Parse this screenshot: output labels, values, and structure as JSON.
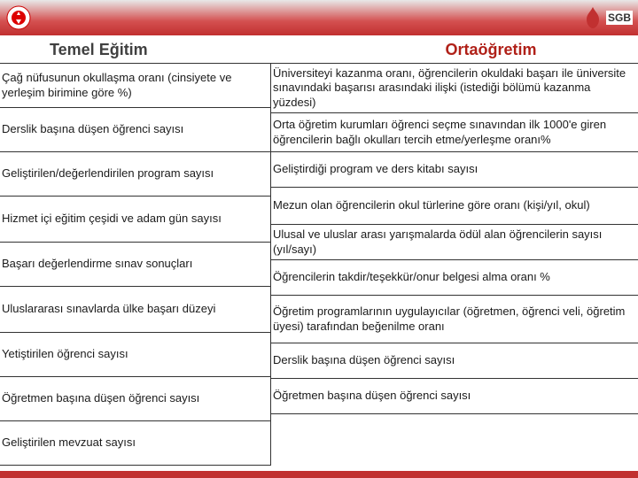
{
  "header": {
    "left_logo_alt": "MEB Logo",
    "right_logo_text": "SGB",
    "bar_color": "#c13030"
  },
  "titles": {
    "left": "Temel Eğitim",
    "right": "Ortaöğretim",
    "left_color": "#404040",
    "right_color": "#b02018",
    "fontsize": 18
  },
  "columns": {
    "left": [
      "Çağ nüfusunun okullaşma oranı (cinsiyete ve yerleşim birimine göre %)",
      "Derslik başına düşen öğrenci sayısı",
      "Geliştirilen/değerlendirilen program sayısı",
      "Hizmet içi eğitim çeşidi ve adam gün sayısı",
      "Başarı değerlendirme sınav sonuçları",
      "Uluslararası sınavlarda ülke başarı düzeyi",
      "Yetiştirilen öğrenci sayısı",
      "Öğretmen başına düşen öğrenci sayısı",
      "Geliştirilen mevzuat sayısı"
    ],
    "right": [
      "Üniversiteyi kazanma oranı, öğrencilerin okuldaki başarı ile üniversite sınavındaki başarısı arasındaki ilişki (istediği bölümü kazanma yüzdesi)",
      "Orta öğretim kurumları öğrenci seçme sınavından ilk 1000'e giren öğrencilerin bağlı okulları tercih etme/yerleşme oranı%",
      "Geliştirdiği program ve ders kitabı sayısı",
      "Mezun olan öğrencilerin okul türlerine göre oranı (kişi/yıl, okul)",
      "Ulusal ve uluslar arası yarışmalarda ödül alan öğrencilerin sayısı (yıl/sayı)",
      "Öğrencilerin takdir/teşekkür/onur belgesi alma oranı %",
      "Öğretim programlarının uygulayıcılar (öğretmen, öğrenci veli, öğretim üyesi)  tarafından beğenilme oranı",
      "Derslik başına düşen öğrenci sayısı",
      "Öğretmen başına düşen öğrenci sayısı"
    ]
  },
  "layout": {
    "left_heights": [
      48,
      34,
      48,
      52,
      46,
      52,
      34,
      40,
      40
    ],
    "right_heights": [
      56,
      44,
      30,
      42,
      40,
      26,
      54,
      30,
      40
    ],
    "cell_fontsize": 13,
    "border_color": "#333333"
  }
}
